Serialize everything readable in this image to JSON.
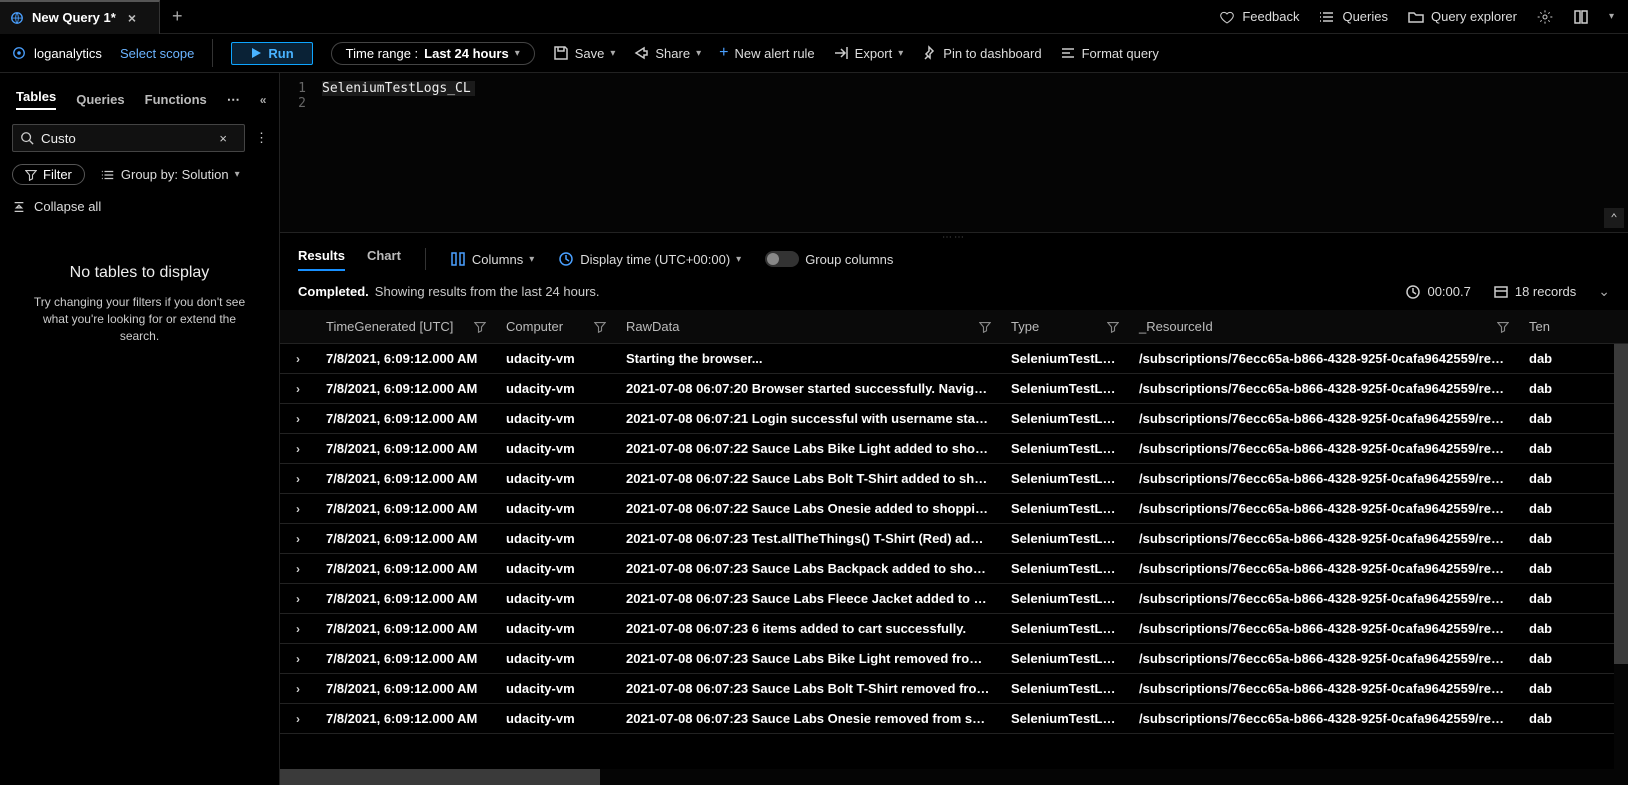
{
  "tab": {
    "title": "New Query 1*"
  },
  "topRight": {
    "feedback": "Feedback",
    "queries": "Queries",
    "explorer": "Query explorer"
  },
  "subBar": {
    "workspace": "loganalytics",
    "scope": "Select scope",
    "run": "Run",
    "timeRangeLabel": "Time range :",
    "timeRangeValue": "Last 24 hours",
    "save": "Save",
    "share": "Share",
    "newAlert": "New alert rule",
    "export": "Export",
    "pin": "Pin to dashboard",
    "format": "Format query"
  },
  "sidebar": {
    "tabs": {
      "tables": "Tables",
      "queries": "Queries",
      "functions": "Functions"
    },
    "searchValue": "Custo",
    "filter": "Filter",
    "groupBy": "Group by: Solution",
    "collapse": "Collapse all",
    "noTables": "No tables to display",
    "noTablesSub": "Try changing your filters if you don't see what you're looking for or extend the search."
  },
  "editor": {
    "lines": [
      {
        "n": "1",
        "code": "SeleniumTestLogs_CL"
      },
      {
        "n": "2",
        "code": ""
      }
    ]
  },
  "resultsBar": {
    "results": "Results",
    "chart": "Chart",
    "columns": "Columns",
    "displayTime": "Display time (UTC+00:00)",
    "groupCols": "Group columns"
  },
  "status": {
    "completed": "Completed.",
    "rest": "Showing results from the last 24 hours.",
    "duration": "00:00.7",
    "records": "18 records"
  },
  "columns": {
    "c1": "TimeGenerated [UTC]",
    "c2": "Computer",
    "c3": "RawData",
    "c4": "Type",
    "c5": "_ResourceId",
    "c6": "Ten"
  },
  "rows": [
    {
      "time": "7/8/2021, 6:09:12.000 AM",
      "computer": "udacity-vm",
      "raw": "Starting the browser...",
      "type": "SeleniumTestLogs...",
      "res": "/subscriptions/76ecc65a-b866-4328-925f-0cafa9642559/resour...",
      "ten": "dab"
    },
    {
      "time": "7/8/2021, 6:09:12.000 AM",
      "computer": "udacity-vm",
      "raw": "2021-07-08 06:07:20 Browser started successfully. Navigating t...",
      "type": "SeleniumTestLogs...",
      "res": "/subscriptions/76ecc65a-b866-4328-925f-0cafa9642559/resour...",
      "ten": "dab"
    },
    {
      "time": "7/8/2021, 6:09:12.000 AM",
      "computer": "udacity-vm",
      "raw": "2021-07-08 06:07:21 Login successful with username standard_...",
      "type": "SeleniumTestLogs...",
      "res": "/subscriptions/76ecc65a-b866-4328-925f-0cafa9642559/resour...",
      "ten": "dab"
    },
    {
      "time": "7/8/2021, 6:09:12.000 AM",
      "computer": "udacity-vm",
      "raw": "2021-07-08 06:07:22 Sauce Labs Bike Light added to shopping ...",
      "type": "SeleniumTestLogs...",
      "res": "/subscriptions/76ecc65a-b866-4328-925f-0cafa9642559/resour...",
      "ten": "dab"
    },
    {
      "time": "7/8/2021, 6:09:12.000 AM",
      "computer": "udacity-vm",
      "raw": "2021-07-08 06:07:22 Sauce Labs Bolt T-Shirt added to shoppin...",
      "type": "SeleniumTestLogs...",
      "res": "/subscriptions/76ecc65a-b866-4328-925f-0cafa9642559/resour...",
      "ten": "dab"
    },
    {
      "time": "7/8/2021, 6:09:12.000 AM",
      "computer": "udacity-vm",
      "raw": "2021-07-08 06:07:22 Sauce Labs Onesie added to shopping cart!",
      "type": "SeleniumTestLogs...",
      "res": "/subscriptions/76ecc65a-b866-4328-925f-0cafa9642559/resour...",
      "ten": "dab"
    },
    {
      "time": "7/8/2021, 6:09:12.000 AM",
      "computer": "udacity-vm",
      "raw": "2021-07-08 06:07:23 Test.allTheThings() T-Shirt (Red) added to ...",
      "type": "SeleniumTestLogs...",
      "res": "/subscriptions/76ecc65a-b866-4328-925f-0cafa9642559/resour...",
      "ten": "dab"
    },
    {
      "time": "7/8/2021, 6:09:12.000 AM",
      "computer": "udacity-vm",
      "raw": "2021-07-08 06:07:23 Sauce Labs Backpack added to shopping c...",
      "type": "SeleniumTestLogs...",
      "res": "/subscriptions/76ecc65a-b866-4328-925f-0cafa9642559/resour...",
      "ten": "dab"
    },
    {
      "time": "7/8/2021, 6:09:12.000 AM",
      "computer": "udacity-vm",
      "raw": "2021-07-08 06:07:23 Sauce Labs Fleece Jacket added to shoppi...",
      "type": "SeleniumTestLogs...",
      "res": "/subscriptions/76ecc65a-b866-4328-925f-0cafa9642559/resour...",
      "ten": "dab"
    },
    {
      "time": "7/8/2021, 6:09:12.000 AM",
      "computer": "udacity-vm",
      "raw": "2021-07-08 06:07:23 6 items added to cart successfully.",
      "type": "SeleniumTestLogs...",
      "res": "/subscriptions/76ecc65a-b866-4328-925f-0cafa9642559/resour...",
      "ten": "dab"
    },
    {
      "time": "7/8/2021, 6:09:12.000 AM",
      "computer": "udacity-vm",
      "raw": "2021-07-08 06:07:23 Sauce Labs Bike Light removed from shop...",
      "type": "SeleniumTestLogs...",
      "res": "/subscriptions/76ecc65a-b866-4328-925f-0cafa9642559/resour...",
      "ten": "dab"
    },
    {
      "time": "7/8/2021, 6:09:12.000 AM",
      "computer": "udacity-vm",
      "raw": "2021-07-08 06:07:23 Sauce Labs Bolt T-Shirt removed from sho...",
      "type": "SeleniumTestLogs...",
      "res": "/subscriptions/76ecc65a-b866-4328-925f-0cafa9642559/resour...",
      "ten": "dab"
    },
    {
      "time": "7/8/2021, 6:09:12.000 AM",
      "computer": "udacity-vm",
      "raw": "2021-07-08 06:07:23 Sauce Labs Onesie removed from shoppin...",
      "type": "SeleniumTestLogs...",
      "res": "/subscriptions/76ecc65a-b866-4328-925f-0cafa9642559/resour...",
      "ten": "dab"
    }
  ]
}
